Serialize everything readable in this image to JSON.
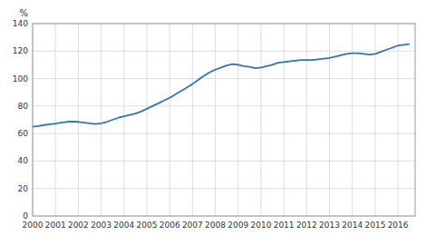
{
  "chart_data": {
    "type": "line",
    "ylabel": "%",
    "color": "#2e75b6",
    "grid": true,
    "xlim": [
      2000,
      2016.75
    ],
    "xticks": [
      2000,
      2001,
      2002,
      2003,
      2004,
      2005,
      2006,
      2007,
      2008,
      2009,
      2010,
      2011,
      2012,
      2013,
      2014,
      2015,
      2016
    ],
    "ylim": [
      0,
      140
    ],
    "yticks": [
      0,
      20,
      40,
      60,
      80,
      100,
      120,
      140
    ],
    "x": [
      2000,
      2000.25,
      2000.5,
      2000.75,
      2001,
      2001.25,
      2001.5,
      2001.75,
      2002,
      2002.25,
      2002.5,
      2002.75,
      2003,
      2003.25,
      2003.5,
      2003.75,
      2004,
      2004.25,
      2004.5,
      2004.75,
      2005,
      2005.25,
      2005.5,
      2005.75,
      2006,
      2006.25,
      2006.5,
      2006.75,
      2007,
      2007.25,
      2007.5,
      2007.75,
      2008,
      2008.25,
      2008.5,
      2008.75,
      2009,
      2009.25,
      2009.5,
      2009.75,
      2010,
      2010.25,
      2010.5,
      2010.75,
      2011,
      2011.25,
      2011.5,
      2011.75,
      2012,
      2012.25,
      2012.5,
      2012.75,
      2013,
      2013.25,
      2013.5,
      2013.75,
      2014,
      2014.25,
      2014.5,
      2014.75,
      2015,
      2015.25,
      2015.5,
      2015.75,
      2016,
      2016.25,
      2016.5
    ],
    "values": [
      65.0,
      65.5,
      66.2,
      66.8,
      67.2,
      68.0,
      68.5,
      68.8,
      68.5,
      68.0,
      67.5,
      67.0,
      67.5,
      68.5,
      70.0,
      71.5,
      72.5,
      73.5,
      74.5,
      76.0,
      78.0,
      80.0,
      82.0,
      84.0,
      86.0,
      88.5,
      91.0,
      93.5,
      96.0,
      99.0,
      102.0,
      104.5,
      106.5,
      108.0,
      109.5,
      110.5,
      110.0,
      109.0,
      108.5,
      107.5,
      108.0,
      109.0,
      110.0,
      111.5,
      112.0,
      112.5,
      113.0,
      113.5,
      113.5,
      113.5,
      114.0,
      114.5,
      115.0,
      116.0,
      117.0,
      118.0,
      118.5,
      118.5,
      118.0,
      117.5,
      118.0,
      119.5,
      121.0,
      122.5,
      124.0,
      124.5,
      125.0
    ]
  }
}
